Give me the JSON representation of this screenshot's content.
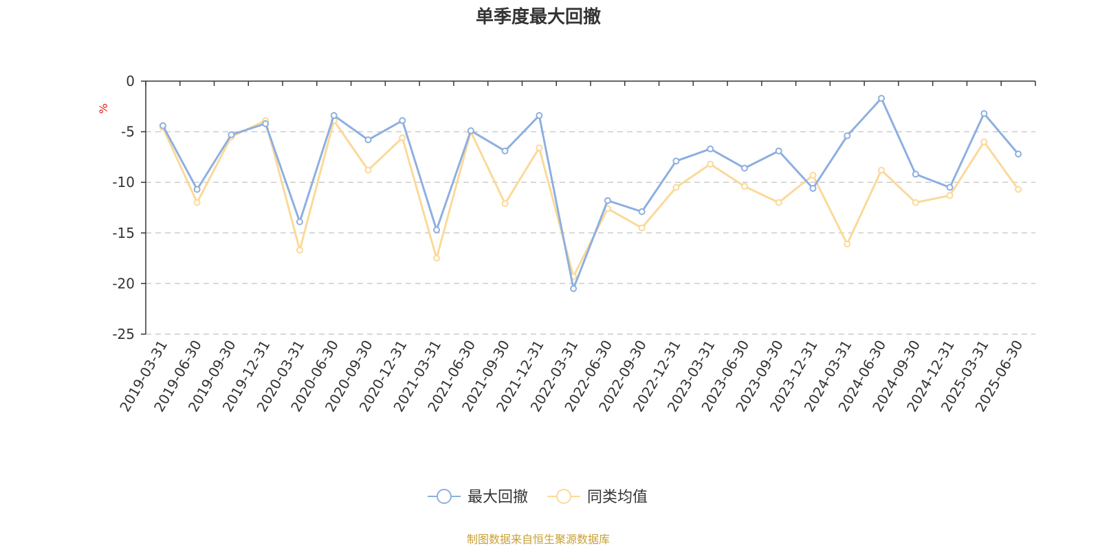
{
  "chart_data": {
    "type": "line",
    "title": "单季度最大回撤",
    "unit_label": "%",
    "ylim": [
      -25,
      0
    ],
    "yticks": [
      0,
      -5,
      -10,
      -15,
      -20,
      -25
    ],
    "grid": "horizontal dashed",
    "legend_position": "bottom-center",
    "categories": [
      "2019-03-31",
      "2019-06-30",
      "2019-09-30",
      "2019-12-31",
      "2020-03-31",
      "2020-06-30",
      "2020-09-30",
      "2020-12-31",
      "2021-03-31",
      "2021-06-30",
      "2021-09-30",
      "2021-12-31",
      "2022-03-31",
      "2022-06-30",
      "2022-09-30",
      "2022-12-31",
      "2023-03-31",
      "2023-06-30",
      "2023-09-30",
      "2023-12-31",
      "2024-03-31",
      "2024-06-30",
      "2024-09-30",
      "2024-12-31",
      "2025-03-31",
      "2025-06-30"
    ],
    "series": [
      {
        "name": "最大回撤",
        "color": "#8dafe0",
        "values": [
          -4.4,
          -10.7,
          -5.3,
          -4.2,
          -13.9,
          -3.4,
          -5.8,
          -3.9,
          -14.7,
          -4.9,
          -6.9,
          -3.4,
          -20.5,
          -11.8,
          -12.9,
          -7.9,
          -6.7,
          -8.6,
          -6.9,
          -10.6,
          -5.4,
          -1.7,
          -9.2,
          -10.5,
          -3.2,
          -7.2
        ]
      },
      {
        "name": "同类均值",
        "color": "#fbd998",
        "values": [
          -4.6,
          -12.0,
          -5.5,
          -3.9,
          -16.7,
          -3.9,
          -8.8,
          -5.6,
          -17.5,
          -5.0,
          -12.1,
          -6.6,
          -19.3,
          -12.6,
          -14.5,
          -10.5,
          -8.2,
          -10.4,
          -12.0,
          -9.3,
          -16.1,
          -8.8,
          -12.0,
          -11.3,
          -6.0,
          -10.7
        ]
      }
    ]
  },
  "footer": {
    "source_text": "制图数据来自恒生聚源数据库",
    "source_color": "#c8a034"
  },
  "colors": {
    "unit": "#e02020",
    "axis": "#333333",
    "grid": "#cccccc"
  }
}
